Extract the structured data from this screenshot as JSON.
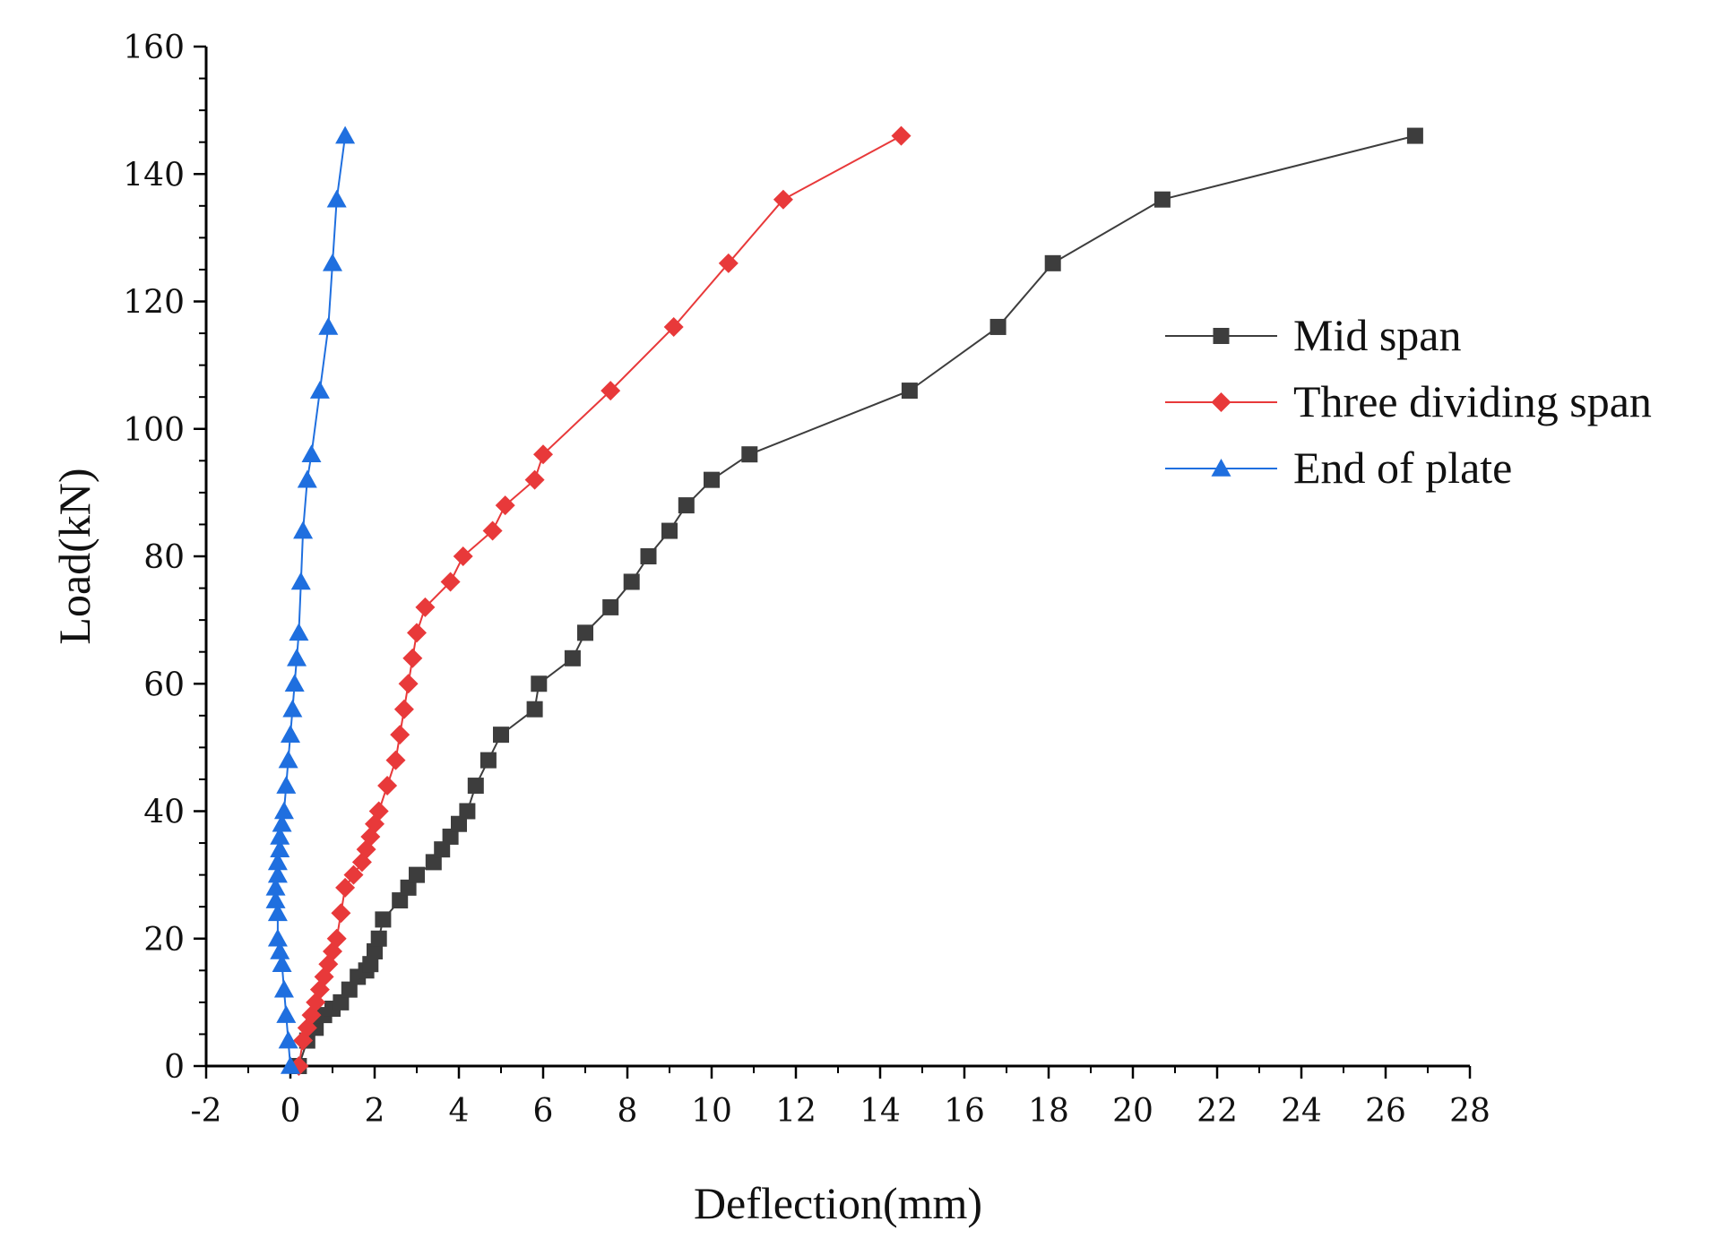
{
  "chart_data": {
    "type": "line",
    "title": "",
    "xlabel": "Deflection(mm)",
    "ylabel": "Load(kN)",
    "xlim": [
      -2,
      28
    ],
    "ylim": [
      0,
      160
    ],
    "xticks": [
      -2,
      0,
      2,
      4,
      6,
      8,
      10,
      12,
      14,
      16,
      18,
      20,
      22,
      24,
      26,
      28
    ],
    "xtick_labels": [
      "-2",
      "0",
      "2",
      "4",
      "6",
      "8",
      "10",
      "12",
      "14",
      "16",
      "18",
      "20",
      "22",
      "24",
      "26",
      "28"
    ],
    "yticks": [
      0,
      20,
      40,
      60,
      80,
      100,
      120,
      140,
      160
    ],
    "ytick_labels": [
      "0",
      "20",
      "40",
      "60",
      "80",
      "100",
      "120",
      "140",
      "160"
    ],
    "grid": false,
    "legend_position": "right",
    "series": [
      {
        "name": "Mid span",
        "color": "#3d3d3d",
        "marker": "square",
        "x": [
          0.2,
          0.4,
          0.6,
          0.8,
          1.0,
          1.2,
          1.4,
          1.6,
          1.8,
          1.9,
          2.0,
          2.1,
          2.2,
          2.6,
          2.8,
          3.0,
          3.4,
          3.6,
          3.8,
          4.0,
          4.2,
          4.4,
          4.7,
          5.0,
          5.8,
          5.9,
          6.7,
          7.0,
          7.6,
          8.1,
          8.5,
          9.0,
          9.4,
          10.0,
          10.9,
          14.7,
          16.8,
          18.1,
          20.7,
          26.7
        ],
        "y": [
          0,
          4,
          6,
          8,
          9,
          10,
          12,
          14,
          15,
          16,
          18,
          20,
          23,
          26,
          28,
          30,
          32,
          34,
          36,
          38,
          40,
          44,
          48,
          52,
          56,
          60,
          64,
          68,
          72,
          76,
          80,
          84,
          88,
          92,
          96,
          106,
          116,
          126,
          136,
          146
        ]
      },
      {
        "name": "Three dividing span",
        "color": "#e8393a",
        "marker": "diamond",
        "x": [
          0.2,
          0.3,
          0.4,
          0.5,
          0.6,
          0.7,
          0.8,
          0.9,
          1.0,
          1.1,
          1.2,
          1.3,
          1.5,
          1.7,
          1.8,
          1.9,
          2.0,
          2.1,
          2.3,
          2.5,
          2.6,
          2.7,
          2.8,
          2.9,
          3.0,
          3.2,
          3.8,
          4.1,
          4.8,
          5.1,
          5.8,
          6.0,
          7.6,
          9.1,
          10.4,
          11.7,
          14.5
        ],
        "y": [
          0,
          4,
          6,
          8,
          10,
          12,
          14,
          16,
          18,
          20,
          24,
          28,
          30,
          32,
          34,
          36,
          38,
          40,
          44,
          48,
          52,
          56,
          60,
          64,
          68,
          72,
          76,
          80,
          84,
          88,
          92,
          96,
          106,
          116,
          126,
          136,
          146
        ]
      },
      {
        "name": "End of plate",
        "color": "#1f6fdf",
        "marker": "triangle",
        "x": [
          0.0,
          -0.05,
          -0.1,
          -0.15,
          -0.2,
          -0.25,
          -0.3,
          -0.3,
          -0.35,
          -0.35,
          -0.3,
          -0.3,
          -0.25,
          -0.25,
          -0.2,
          -0.15,
          -0.1,
          -0.05,
          0.0,
          0.05,
          0.1,
          0.15,
          0.2,
          0.25,
          0.3,
          0.4,
          0.5,
          0.7,
          0.9,
          1.0,
          1.1,
          1.3
        ],
        "y": [
          0,
          4,
          8,
          12,
          16,
          18,
          20,
          24,
          26,
          28,
          30,
          32,
          34,
          36,
          38,
          40,
          44,
          48,
          52,
          56,
          60,
          64,
          68,
          76,
          84,
          92,
          96,
          106,
          116,
          126,
          136,
          146
        ]
      }
    ]
  }
}
